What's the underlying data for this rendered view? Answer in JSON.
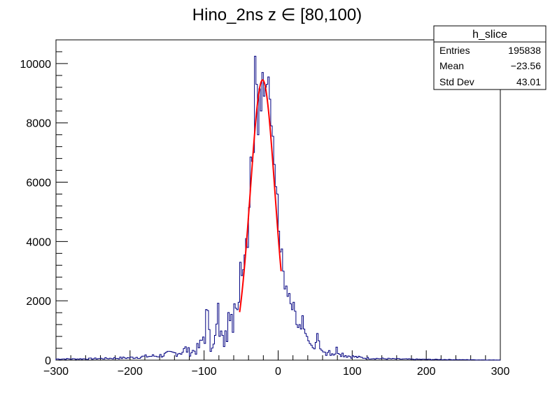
{
  "chart_data": {
    "type": "histogram",
    "title": "Hino_2ns z ∈ [80,100)",
    "xlabel": "",
    "ylabel": "",
    "xlim": [
      -300,
      300
    ],
    "ylim": [
      0,
      10800
    ],
    "x_ticks": [
      -300,
      -200,
      -100,
      0,
      100,
      200,
      300
    ],
    "x_tick_labels": [
      "−300",
      "−200",
      "−100",
      "0",
      "100",
      "200",
      "300"
    ],
    "y_ticks": [
      0,
      2000,
      4000,
      6000,
      8000,
      10000
    ],
    "y_tick_labels": [
      "0",
      "2000",
      "4000",
      "6000",
      "8000",
      "10000"
    ],
    "grid": false,
    "histogram_color": "#000080",
    "fit_color": "#ff0000",
    "series": [
      {
        "kind": "histogram",
        "bin_edges": [
          -300,
          300
        ],
        "bin_width": 2,
        "points": [
          [
            -270,
            40
          ],
          [
            -230,
            60
          ],
          [
            -200,
            80
          ],
          [
            -180,
            120
          ],
          [
            -160,
            150
          ],
          [
            -150,
            200
          ],
          [
            -140,
            230
          ],
          [
            -130,
            280
          ],
          [
            -124,
            380
          ],
          [
            -120,
            260
          ],
          [
            -110,
            350
          ],
          [
            -104,
            520
          ],
          [
            -100,
            900
          ],
          [
            -98,
            1320
          ],
          [
            -96,
            1200
          ],
          [
            -94,
            1350
          ],
          [
            -92,
            560
          ],
          [
            -90,
            620
          ],
          [
            -88,
            450
          ],
          [
            -86,
            700
          ],
          [
            -84,
            1050
          ],
          [
            -82,
            1400
          ],
          [
            -80,
            1100
          ],
          [
            -78,
            740
          ],
          [
            -76,
            1250
          ],
          [
            -74,
            850
          ],
          [
            -72,
            1700
          ],
          [
            -70,
            1200
          ],
          [
            -68,
            1550
          ],
          [
            -66,
            1000
          ],
          [
            -64,
            1150
          ],
          [
            -62,
            1450
          ],
          [
            -60,
            1900
          ],
          [
            -58,
            1750
          ],
          [
            -56,
            1700
          ],
          [
            -54,
            1950
          ],
          [
            -52,
            3300
          ],
          [
            -50,
            2850
          ],
          [
            -48,
            3050
          ],
          [
            -46,
            3550
          ],
          [
            -44,
            4100
          ],
          [
            -42,
            3800
          ],
          [
            -40,
            5150
          ],
          [
            -38,
            6850
          ],
          [
            -36,
            6700
          ],
          [
            -34,
            7000
          ],
          [
            -32,
            10250
          ],
          [
            -30,
            9300
          ],
          [
            -28,
            7600
          ],
          [
            -26,
            9150
          ],
          [
            -24,
            8400
          ],
          [
            -22,
            9700
          ],
          [
            -20,
            8900
          ],
          [
            -18,
            9200
          ],
          [
            -16,
            9300
          ],
          [
            -14,
            9550
          ],
          [
            -12,
            8800
          ],
          [
            -10,
            7900
          ],
          [
            -8,
            7550
          ],
          [
            -6,
            6600
          ],
          [
            -4,
            5850
          ],
          [
            -2,
            5600
          ],
          [
            0,
            4350
          ],
          [
            2,
            3650
          ],
          [
            4,
            3750
          ],
          [
            6,
            3000
          ],
          [
            8,
            2400
          ],
          [
            10,
            2500
          ],
          [
            12,
            2150
          ],
          [
            14,
            2250
          ],
          [
            16,
            1900
          ],
          [
            18,
            1700
          ],
          [
            20,
            1950
          ],
          [
            22,
            1650
          ],
          [
            24,
            1200
          ],
          [
            26,
            1100
          ],
          [
            28,
            1200
          ],
          [
            30,
            1050
          ],
          [
            32,
            1500
          ],
          [
            34,
            1050
          ],
          [
            36,
            900
          ],
          [
            38,
            800
          ],
          [
            40,
            650
          ],
          [
            42,
            560
          ],
          [
            44,
            500
          ],
          [
            46,
            420
          ],
          [
            48,
            380
          ],
          [
            50,
            600
          ],
          [
            52,
            900
          ],
          [
            54,
            650
          ],
          [
            56,
            380
          ],
          [
            58,
            330
          ],
          [
            60,
            280
          ],
          [
            64,
            270
          ],
          [
            68,
            350
          ],
          [
            72,
            260
          ],
          [
            76,
            220
          ],
          [
            80,
            380
          ],
          [
            86,
            220
          ],
          [
            92,
            160
          ],
          [
            100,
            120
          ],
          [
            110,
            90
          ],
          [
            120,
            70
          ],
          [
            140,
            50
          ],
          [
            160,
            40
          ],
          [
            180,
            30
          ],
          [
            200,
            25
          ],
          [
            240,
            15
          ],
          [
            270,
            10
          ],
          [
            299,
            5
          ]
        ]
      },
      {
        "kind": "gaussian-fit",
        "constant": 9450,
        "mean": -21,
        "sigma": 16.5,
        "range": [
          -52,
          4
        ]
      }
    ],
    "stats_box": {
      "title": "h_slice",
      "rows": [
        {
          "label": "Entries",
          "value": "195838"
        },
        {
          "label": "Mean",
          "value": "−23.56"
        },
        {
          "label": "Std Dev",
          "value": "43.01"
        }
      ]
    }
  }
}
